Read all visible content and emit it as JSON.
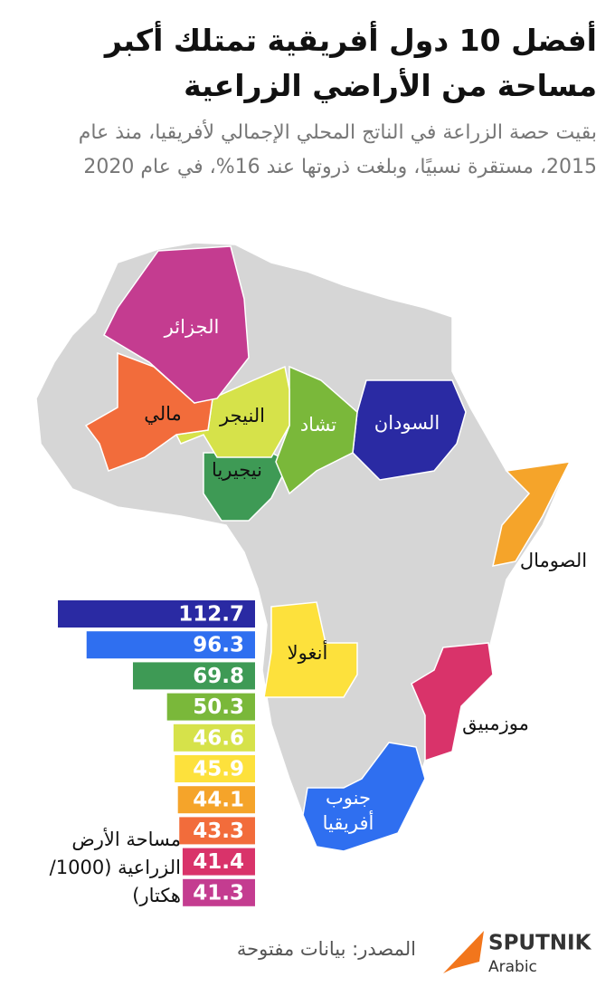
{
  "chart_data": {
    "type": "bar",
    "orientation": "horizontal",
    "title": "أفضل 10 دول أفريقية تمتلك أكبر مساحة من الأراضي الزراعية",
    "subtitle": "بقيت حصة الزراعة في الناتج المحلي الإجمالي لأفريقيا، منذ عام 2015، مستقرة نسبيًا، وبلغت ذروتها عند 16%، في عام 2020",
    "axis_label": "مساحة الأرض الزراعية (1000/ هكتار)",
    "categories": [
      "السودان",
      "جنوب أفريقيا",
      "نيجيريا",
      "تشاد",
      "النيجر",
      "أنغولا",
      "الصومال",
      "مالي",
      "موزمبيق",
      "الجزائر"
    ],
    "values": [
      112.7,
      96.3,
      69.8,
      50.3,
      46.6,
      45.9,
      44.1,
      43.3,
      41.4,
      41.3
    ],
    "colors": [
      "#2a2aa3",
      "#2f6ff0",
      "#3e9a55",
      "#7ab83a",
      "#d6e24a",
      "#fde13c",
      "#f5a42a",
      "#f26c3b",
      "#d9336a",
      "#c43c90"
    ]
  },
  "source": "المصدر: بيانات مفتوحة",
  "logo": {
    "name": "SPUTNIK",
    "sub": "Arabic"
  }
}
